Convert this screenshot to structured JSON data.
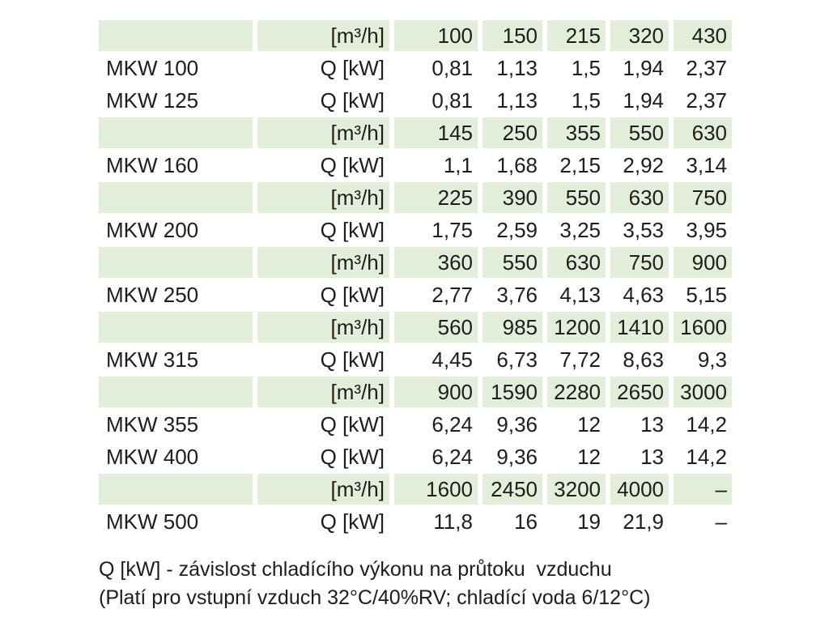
{
  "colors": {
    "highlight_row_bg": "#e2eeda",
    "text": "#1d1d1b",
    "page_bg": "#ffffff"
  },
  "table": {
    "unit_flow_label": "[m³/h]",
    "unit_power_label": "Q [kW]",
    "rows": [
      {
        "model": "",
        "unit": "[m³/h]",
        "highlight": true,
        "values": [
          "100",
          "150",
          "215",
          "320",
          "430"
        ]
      },
      {
        "model": "MKW 100",
        "unit": "Q [kW]",
        "highlight": false,
        "values": [
          "0,81",
          "1,13",
          "1,5",
          "1,94",
          "2,37"
        ]
      },
      {
        "model": "MKW 125",
        "unit": "Q [kW]",
        "highlight": false,
        "values": [
          "0,81",
          "1,13",
          "1,5",
          "1,94",
          "2,37"
        ]
      },
      {
        "model": "",
        "unit": "[m³/h]",
        "highlight": true,
        "values": [
          "145",
          "250",
          "355",
          "550",
          "630"
        ]
      },
      {
        "model": "MKW 160",
        "unit": "Q [kW]",
        "highlight": false,
        "values": [
          "1,1",
          "1,68",
          "2,15",
          "2,92",
          "3,14"
        ]
      },
      {
        "model": "",
        "unit": "[m³/h]",
        "highlight": true,
        "values": [
          "225",
          "390",
          "550",
          "630",
          "750"
        ]
      },
      {
        "model": "MKW 200",
        "unit": "Q [kW]",
        "highlight": false,
        "values": [
          "1,75",
          "2,59",
          "3,25",
          "3,53",
          "3,95"
        ]
      },
      {
        "model": "",
        "unit": "[m³/h]",
        "highlight": true,
        "values": [
          "360",
          "550",
          "630",
          "750",
          "900"
        ]
      },
      {
        "model": "MKW 250",
        "unit": "Q [kW]",
        "highlight": false,
        "values": [
          "2,77",
          "3,76",
          "4,13",
          "4,63",
          "5,15"
        ]
      },
      {
        "model": "",
        "unit": "[m³/h]",
        "highlight": true,
        "values": [
          "560",
          "985",
          "1200",
          "1410",
          "1600"
        ]
      },
      {
        "model": "MKW 315",
        "unit": "Q [kW]",
        "highlight": false,
        "values": [
          "4,45",
          "6,73",
          "7,72",
          "8,63",
          "9,3"
        ]
      },
      {
        "model": "",
        "unit": "[m³/h]",
        "highlight": true,
        "values": [
          "900",
          "1590",
          "2280",
          "2650",
          "3000"
        ]
      },
      {
        "model": "MKW 355",
        "unit": "Q [kW]",
        "highlight": false,
        "values": [
          "6,24",
          "9,36",
          "12",
          "13",
          "14,2"
        ]
      },
      {
        "model": "MKW 400",
        "unit": "Q [kW]",
        "highlight": false,
        "values": [
          "6,24",
          "9,36",
          "12",
          "13",
          "14,2"
        ]
      },
      {
        "model": "",
        "unit": "[m³/h]",
        "highlight": true,
        "values": [
          "1600",
          "2450",
          "3200",
          "4000",
          "–"
        ]
      },
      {
        "model": "MKW 500",
        "unit": "Q [kW]",
        "highlight": false,
        "values": [
          "11,8",
          "16",
          "19",
          "21,9",
          "–"
        ]
      }
    ]
  },
  "footnote": {
    "line1": "Q [kW] - závislost chladícího výkonu na průtoku  vzduchu",
    "line2": "(Platí pro vstupní vzduch 32°C/40%RV; chladící voda 6/12°C)"
  }
}
